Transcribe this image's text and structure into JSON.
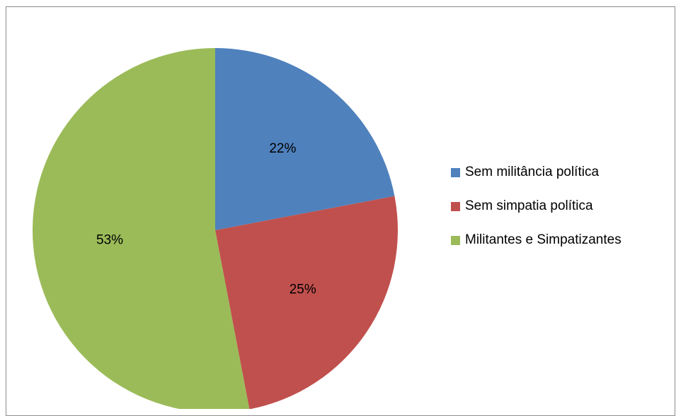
{
  "chart_data": {
    "type": "pie",
    "title": "",
    "categories": [
      "Sem militância política",
      "Sem simpatia política",
      "Militantes e Simpatizantes"
    ],
    "values": [
      22,
      25,
      53
    ],
    "value_labels": [
      "22%",
      "25%",
      "53%"
    ],
    "colors": [
      "#4f81bd",
      "#c0504d",
      "#9bbb59"
    ],
    "start_angle": "12 o'clock",
    "direction": "clockwise",
    "legend": "right"
  }
}
